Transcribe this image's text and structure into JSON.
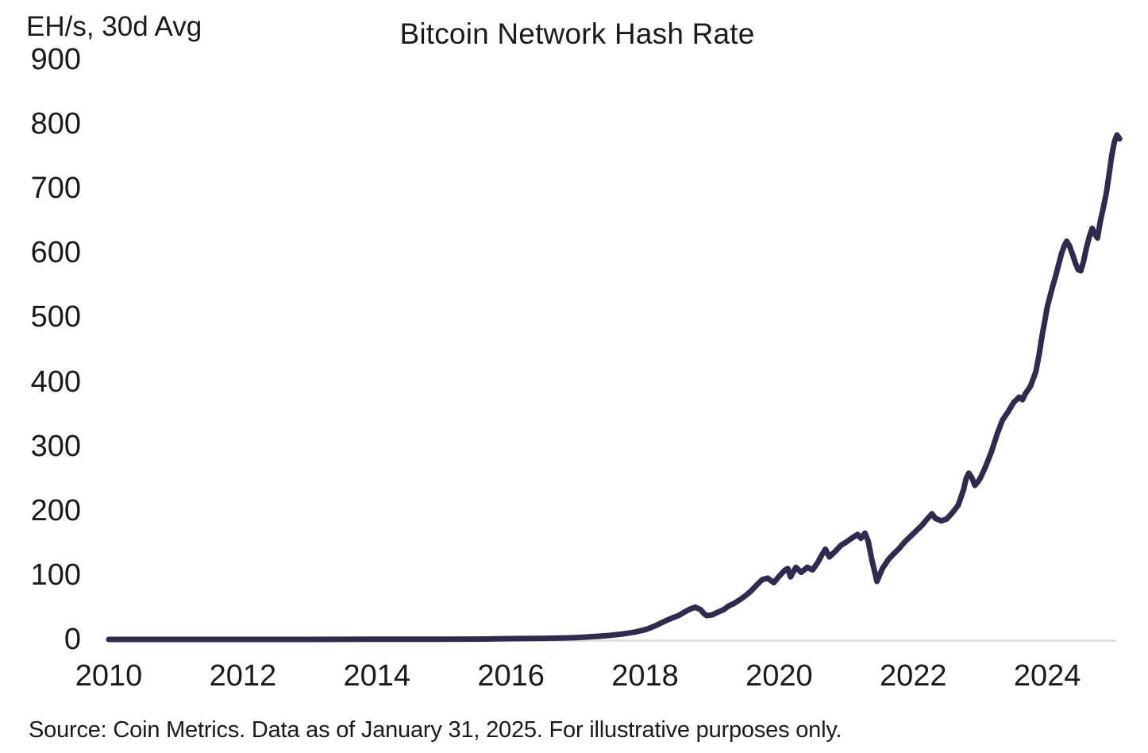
{
  "footer": {
    "source_note": "Source: Coin Metrics. Data as of January 31, 2025. For illustrative purposes only."
  },
  "colors": {
    "background": "#ffffff",
    "text": "#1a1a1a",
    "line": "#2f2a4e",
    "zero_baseline": "#dcdcdc"
  },
  "chart_data": {
    "type": "line",
    "title": "Bitcoin Network Hash Rate",
    "xlabel": "",
    "ylabel": "EH/s, 30d Avg",
    "ylim": [
      0,
      900
    ],
    "xlim": [
      2010,
      2025.1
    ],
    "x_ticks": [
      2010,
      2012,
      2014,
      2016,
      2018,
      2020,
      2022,
      2024
    ],
    "y_ticks": [
      0,
      100,
      200,
      300,
      400,
      500,
      600,
      700,
      800,
      900
    ],
    "grid": "zero-baseline-only",
    "legend": "none",
    "line_width": 7,
    "series": [
      {
        "name": "Bitcoin network hash rate (EH/s, 30-day average)",
        "color": "#2f2a4e",
        "x": [
          2010.0,
          2010.5,
          2011.0,
          2011.5,
          2012.0,
          2012.5,
          2013.0,
          2013.5,
          2014.0,
          2014.5,
          2015.0,
          2015.5,
          2016.0,
          2016.5,
          2016.83,
          2017.0,
          2017.17,
          2017.33,
          2017.5,
          2017.67,
          2017.83,
          2018.0,
          2018.08,
          2018.17,
          2018.25,
          2018.33,
          2018.42,
          2018.5,
          2018.58,
          2018.67,
          2018.75,
          2018.83,
          2018.88,
          2018.92,
          2019.0,
          2019.08,
          2019.17,
          2019.25,
          2019.33,
          2019.42,
          2019.5,
          2019.58,
          2019.67,
          2019.75,
          2019.83,
          2019.92,
          2020.0,
          2020.08,
          2020.13,
          2020.17,
          2020.25,
          2020.33,
          2020.42,
          2020.5,
          2020.58,
          2020.63,
          2020.69,
          2020.75,
          2020.83,
          2020.92,
          2021.0,
          2021.08,
          2021.17,
          2021.22,
          2021.28,
          2021.33,
          2021.38,
          2021.46,
          2021.54,
          2021.63,
          2021.71,
          2021.79,
          2021.87,
          2021.96,
          2022.04,
          2022.13,
          2022.21,
          2022.28,
          2022.33,
          2022.42,
          2022.5,
          2022.58,
          2022.67,
          2022.75,
          2022.79,
          2022.83,
          2022.88,
          2022.92,
          2022.96,
          2023.0,
          2023.08,
          2023.17,
          2023.25,
          2023.33,
          2023.42,
          2023.5,
          2023.58,
          2023.63,
          2023.67,
          2023.75,
          2023.83,
          2023.88,
          2023.92,
          2023.96,
          2024.0,
          2024.04,
          2024.08,
          2024.13,
          2024.17,
          2024.21,
          2024.25,
          2024.29,
          2024.33,
          2024.38,
          2024.42,
          2024.46,
          2024.5,
          2024.54,
          2024.58,
          2024.63,
          2024.67,
          2024.71,
          2024.75,
          2024.79,
          2024.83,
          2024.88,
          2024.92,
          2024.96,
          2025.0,
          2025.04,
          2025.08
        ],
        "y": [
          0,
          0,
          0,
          0,
          0,
          0,
          0,
          0.1,
          0.2,
          0.3,
          0.3,
          0.5,
          1.2,
          1.7,
          2.3,
          3,
          4,
          5,
          6.5,
          8.5,
          11,
          15,
          18,
          22,
          26,
          30,
          34,
          37,
          42,
          47,
          50,
          46,
          40,
          37,
          38,
          42,
          46,
          52,
          56,
          62,
          68,
          75,
          85,
          93,
          95,
          88,
          98,
          107,
          110,
          97,
          112,
          104,
          112,
          108,
          120,
          130,
          140,
          128,
          136,
          146,
          151,
          157,
          163,
          157,
          165,
          152,
          125,
          90,
          110,
          124,
          133,
          141,
          151,
          160,
          168,
          177,
          187,
          195,
          188,
          184,
          187,
          196,
          208,
          232,
          250,
          258,
          250,
          239,
          244,
          250,
          268,
          292,
          318,
          340,
          354,
          368,
          376,
          372,
          381,
          393,
          416,
          443,
          470,
          492,
          516,
          532,
          548,
          566,
          582,
          598,
          610,
          618,
          611,
          597,
          584,
          574,
          572,
          586,
          606,
          626,
          638,
          629,
          623,
          648,
          667,
          692,
          720,
          750,
          772,
          783,
          777
        ]
      }
    ]
  }
}
